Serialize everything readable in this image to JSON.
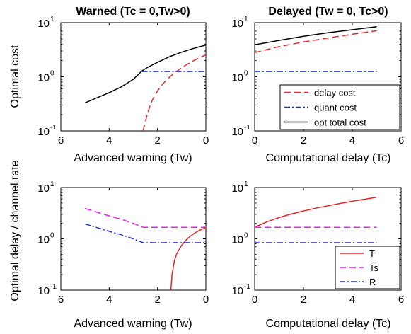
{
  "figure": {
    "ylabel_top": "Optimal cost",
    "ylabel_bottom": "Optimal delay / channel rate"
  },
  "colors": {
    "red": "#e8252d",
    "blue": "#1f2fe0",
    "black": "#000000",
    "magenta": "#ee1fee"
  },
  "chart_data": [
    {
      "id": "top-left",
      "type": "line",
      "title": "Warned (Tc = 0,Tw>0)",
      "xlabel": "Advanced warning (Tw)",
      "ylabel": "Optimal cost",
      "xlim": [
        6,
        0
      ],
      "x_reversed": true,
      "xticks": [
        6,
        4,
        2,
        0
      ],
      "ylim": [
        0.1,
        10
      ],
      "yscale": "log",
      "yticks": [
        {
          "base": "10",
          "exp": "-1",
          "value": 0.1
        },
        {
          "base": "10",
          "exp": "0",
          "value": 1
        },
        {
          "base": "10",
          "exp": "1",
          "value": 10
        }
      ],
      "series": [
        {
          "key": "delay",
          "color": "red",
          "dash": "dash",
          "x": [
            2.6,
            2.5,
            2.4,
            2.3,
            2.2,
            2.0,
            1.8,
            1.6,
            1.4,
            1.2,
            1.0,
            0.8,
            0.6,
            0.4,
            0.2,
            0.0
          ],
          "y": [
            0.1,
            0.15,
            0.22,
            0.3,
            0.38,
            0.55,
            0.72,
            0.9,
            1.08,
            1.27,
            1.47,
            1.67,
            1.88,
            2.1,
            2.32,
            2.55
          ]
        },
        {
          "key": "quant",
          "color": "blue",
          "dash": "dashdot",
          "x": [
            2.65,
            0
          ],
          "y": [
            1.25,
            1.25
          ]
        },
        {
          "key": "total",
          "color": "black",
          "dash": "solid",
          "x": [
            5.0,
            4.5,
            4.0,
            3.5,
            3.0,
            2.65,
            2.4,
            2.0,
            1.5,
            1.0,
            0.5,
            0.0
          ],
          "y": [
            0.33,
            0.41,
            0.51,
            0.65,
            0.9,
            1.28,
            1.5,
            1.85,
            2.35,
            2.85,
            3.35,
            3.85
          ]
        }
      ]
    },
    {
      "id": "top-right",
      "type": "line",
      "title": "Delayed (Tw = 0, Tc>0)",
      "xlabel": "Computational delay (Tc)",
      "xlim": [
        0,
        6
      ],
      "x_reversed": false,
      "xticks": [
        0,
        2,
        4,
        6
      ],
      "ylim": [
        0.1,
        10
      ],
      "yscale": "log",
      "yticks": [
        {
          "base": "10",
          "exp": "-1",
          "value": 0.1
        },
        {
          "base": "10",
          "exp": "0",
          "value": 1
        },
        {
          "base": "10",
          "exp": "1",
          "value": 10
        }
      ],
      "legend": "bottom-right",
      "series": [
        {
          "key": "delay",
          "name": "delay cost",
          "color": "red",
          "dash": "dash",
          "x": [
            0,
            1,
            2,
            3,
            4,
            5
          ],
          "y": [
            2.8,
            3.6,
            4.4,
            5.2,
            6.1,
            7.1
          ]
        },
        {
          "key": "quant",
          "name": "quant cost",
          "color": "blue",
          "dash": "dashdot",
          "x": [
            0,
            5
          ],
          "y": [
            1.25,
            1.25
          ]
        },
        {
          "key": "total",
          "name": "opt total cost",
          "color": "black",
          "dash": "solid",
          "x": [
            0,
            1,
            2,
            3,
            4,
            5
          ],
          "y": [
            3.9,
            4.7,
            5.6,
            6.5,
            7.4,
            8.4
          ]
        }
      ]
    },
    {
      "id": "bottom-left",
      "type": "line",
      "xlabel": "Advanced warning (Tw)",
      "ylabel": "Optimal delay / channel rate",
      "xlim": [
        6,
        0
      ],
      "x_reversed": true,
      "xticks": [
        6,
        4,
        2,
        0
      ],
      "ylim": [
        0.1,
        10
      ],
      "yscale": "log",
      "yticks": [
        {
          "base": "10",
          "exp": "-1",
          "value": 0.1
        },
        {
          "base": "10",
          "exp": "0",
          "value": 1
        },
        {
          "base": "10",
          "exp": "1",
          "value": 10
        }
      ],
      "series": [
        {
          "key": "T",
          "color": "red",
          "dash": "solid",
          "x": [
            1.45,
            1.4,
            1.3,
            1.2,
            1.0,
            0.8,
            0.6,
            0.4,
            0.2,
            0.0
          ],
          "y": [
            0.1,
            0.2,
            0.38,
            0.52,
            0.75,
            0.97,
            1.17,
            1.35,
            1.52,
            1.65
          ]
        },
        {
          "key": "Ts",
          "color": "magenta",
          "dash": "dash",
          "x": [
            5.0,
            4.5,
            4.0,
            3.5,
            3.0,
            2.6,
            2.0,
            1.0,
            0.0
          ],
          "y": [
            3.9,
            3.3,
            2.8,
            2.4,
            2.0,
            1.68,
            1.68,
            1.68,
            1.68
          ]
        },
        {
          "key": "R",
          "color": "blue",
          "dash": "dashdot",
          "x": [
            5.0,
            4.5,
            4.0,
            3.5,
            3.0,
            2.6,
            2.0,
            1.0,
            0.0
          ],
          "y": [
            1.95,
            1.65,
            1.4,
            1.2,
            1.0,
            0.84,
            0.84,
            0.84,
            0.84
          ]
        }
      ]
    },
    {
      "id": "bottom-right",
      "type": "line",
      "xlabel": "Computational delay (Tc)",
      "xlim": [
        0,
        6
      ],
      "x_reversed": false,
      "xticks": [
        0,
        2,
        4,
        6
      ],
      "ylim": [
        0.1,
        10
      ],
      "yscale": "log",
      "yticks": [
        {
          "base": "10",
          "exp": "-1",
          "value": 0.1
        },
        {
          "base": "10",
          "exp": "0",
          "value": 1
        },
        {
          "base": "10",
          "exp": "1",
          "value": 10
        }
      ],
      "legend": "bottom-right",
      "series": [
        {
          "key": "T",
          "name": "T",
          "color": "red",
          "dash": "solid",
          "x": [
            0,
            0.5,
            1,
            1.5,
            2,
            2.5,
            3,
            3.5,
            4,
            4.5,
            5
          ],
          "y": [
            1.68,
            2.15,
            2.6,
            3.05,
            3.5,
            3.95,
            4.4,
            4.9,
            5.4,
            5.9,
            6.5
          ]
        },
        {
          "key": "Ts",
          "name": "Ts",
          "color": "magenta",
          "dash": "dash",
          "x": [
            0,
            5
          ],
          "y": [
            1.68,
            1.68
          ]
        },
        {
          "key": "R",
          "name": "R",
          "color": "blue",
          "dash": "dashdot",
          "x": [
            0,
            5
          ],
          "y": [
            0.84,
            0.84
          ]
        }
      ]
    }
  ]
}
